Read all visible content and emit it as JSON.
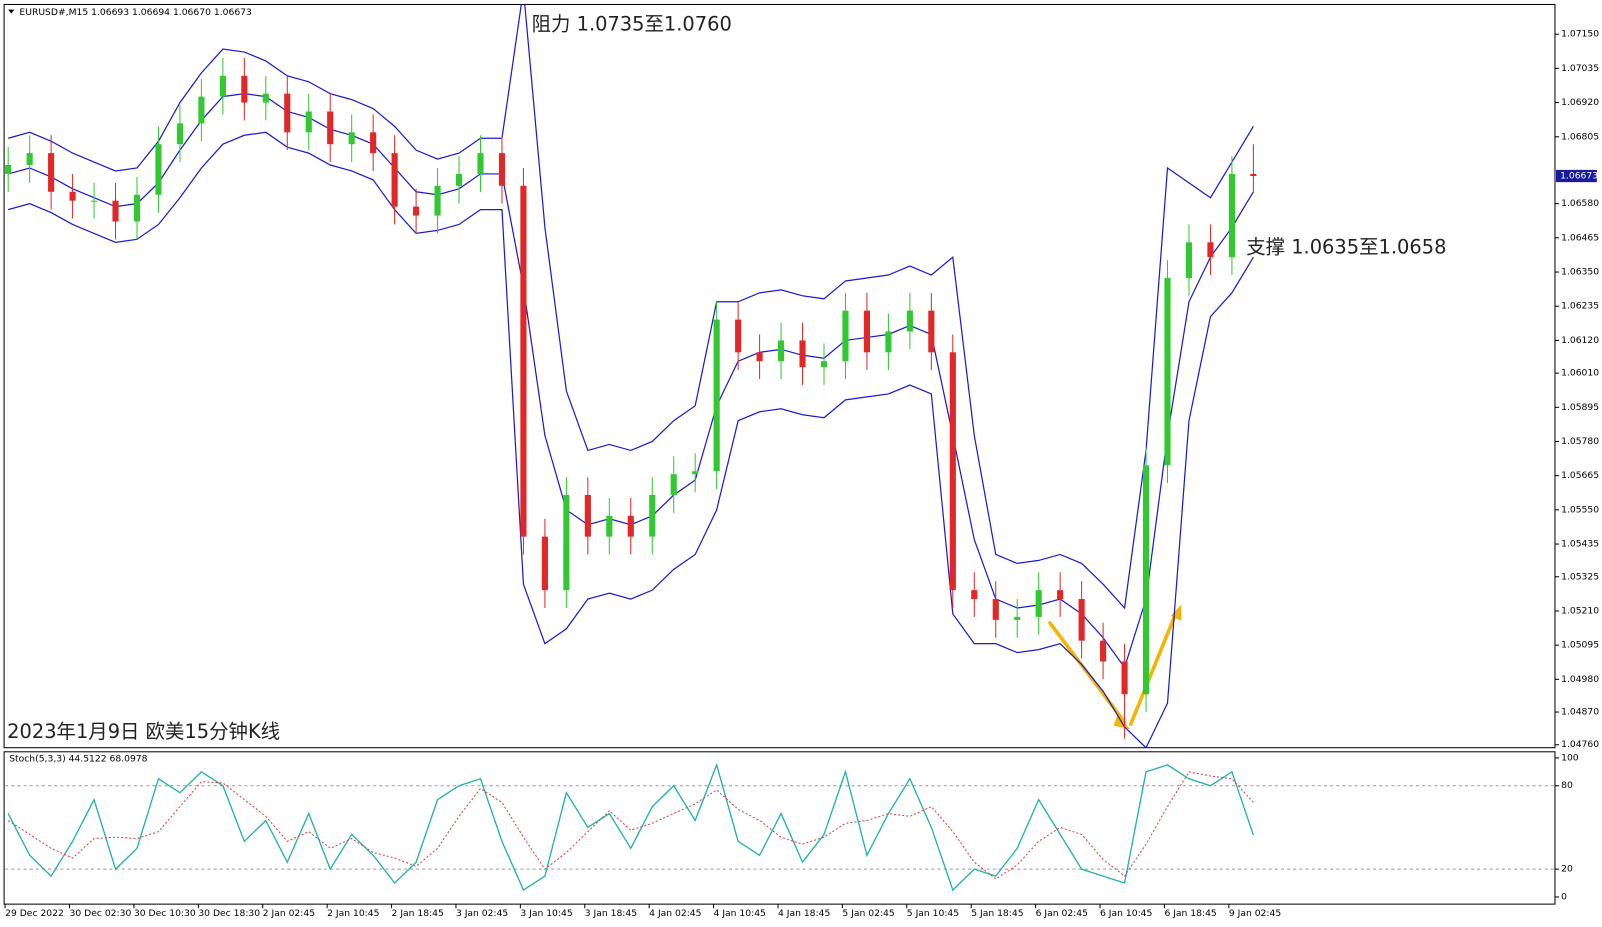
{
  "chart_data": [
    {
      "type": "candlestick",
      "title": "EURUSD#,M15  1.06693 1.06694 1.06670 1.06673",
      "annotations": [
        "阻力 1.0735至1.0760",
        "支撑 1.0635至1.0658",
        "2023年1月9日 欧美15分钟K线"
      ],
      "categories": [
        "29 Dec 2022",
        null,
        null,
        "30 Dec 02:30",
        null,
        null,
        "30 Dec 10:30",
        null,
        null,
        "30 Dec 18:30",
        null,
        null,
        "2 Jan 02:45",
        null,
        null,
        "2 Jan 10:45",
        null,
        null,
        "2 Jan 18:45",
        null,
        null,
        "3 Jan 02:45",
        null,
        null,
        "3 Jan 10:45",
        null,
        null,
        "3 Jan 18:45",
        null,
        null,
        "4 Jan 02:45",
        null,
        null,
        "4 Jan 10:45",
        null,
        null,
        "4 Jan 18:45",
        null,
        null,
        "5 Jan 02:45",
        null,
        null,
        "5 Jan 10:45",
        null,
        null,
        "5 Jan 18:45",
        null,
        null,
        "6 Jan 02:45",
        null,
        null,
        "6 Jan 10:45",
        null,
        null,
        "6 Jan 18:45",
        null,
        null,
        "9 Jan 02:45",
        null
      ],
      "open": [
        1.0668,
        1.0671,
        1.0675,
        1.0662,
        1.0659,
        1.0659,
        1.0652,
        1.0661,
        1.0678,
        1.0685,
        1.0694,
        1.0701,
        1.0692,
        1.0695,
        1.0682,
        1.0689,
        1.0678,
        1.0682,
        1.0675,
        1.0657,
        1.0654,
        1.0664,
        1.0668,
        1.0675,
        1.0664,
        1.0546,
        1.0528,
        1.056,
        1.0546,
        1.0553,
        1.0546,
        1.056,
        1.0567,
        1.0568,
        1.0619,
        1.0608,
        1.0605,
        1.0612,
        1.0603,
        1.0605,
        1.0622,
        1.0608,
        1.0615,
        1.0622,
        1.0608,
        1.0528,
        1.0525,
        1.0518,
        1.0519,
        1.0528,
        1.0525,
        1.0511,
        1.0504,
        1.0493,
        1.057,
        1.0633,
        1.0645,
        1.064,
        1.0668
      ],
      "high": [
        1.0677,
        1.0681,
        1.0681,
        1.0668,
        1.0665,
        1.0665,
        1.0667,
        1.0684,
        1.0691,
        1.07,
        1.0707,
        1.0707,
        1.0701,
        1.0701,
        1.0695,
        1.0695,
        1.0688,
        1.0688,
        1.0681,
        1.0663,
        1.067,
        1.0674,
        1.0681,
        1.0681,
        1.067,
        1.0552,
        1.0566,
        1.0566,
        1.0559,
        1.0559,
        1.0566,
        1.0573,
        1.0574,
        1.0625,
        1.0625,
        1.0614,
        1.0618,
        1.0618,
        1.0611,
        1.0628,
        1.0628,
        1.0621,
        1.0628,
        1.0628,
        1.0614,
        1.0534,
        1.0531,
        1.0525,
        1.0534,
        1.0534,
        1.0531,
        1.0517,
        1.051,
        1.0576,
        1.0639,
        1.0651,
        1.0651,
        1.0674,
        1.0678
      ],
      "low": [
        1.0662,
        1.0665,
        1.0656,
        1.0653,
        1.0653,
        1.0646,
        1.0646,
        1.0655,
        1.0672,
        1.0679,
        1.0688,
        1.0686,
        1.0686,
        1.0676,
        1.0676,
        1.0672,
        1.0672,
        1.0669,
        1.0651,
        1.0648,
        1.0648,
        1.0658,
        1.0662,
        1.0658,
        1.054,
        1.0522,
        1.0522,
        1.054,
        1.054,
        1.054,
        1.054,
        1.0554,
        1.0561,
        1.0562,
        1.0602,
        1.0599,
        1.0599,
        1.0597,
        1.0597,
        1.0599,
        1.0602,
        1.0602,
        1.0609,
        1.0602,
        1.0522,
        1.0519,
        1.0512,
        1.0512,
        1.0513,
        1.0519,
        1.0505,
        1.0498,
        1.0478,
        1.0487,
        1.0564,
        1.0627,
        1.0634,
        1.0634,
        1.0662
      ],
      "close": [
        1.0671,
        1.0675,
        1.0662,
        1.0659,
        1.0659,
        1.0652,
        1.0661,
        1.0678,
        1.0685,
        1.0694,
        1.0701,
        1.0692,
        1.0695,
        1.0682,
        1.0689,
        1.0678,
        1.0682,
        1.0675,
        1.0657,
        1.0654,
        1.0664,
        1.0668,
        1.0675,
        1.0664,
        1.0546,
        1.0528,
        1.056,
        1.0546,
        1.0553,
        1.0546,
        1.056,
        1.0567,
        1.0568,
        1.0619,
        1.0608,
        1.0605,
        1.0612,
        1.0603,
        1.0605,
        1.0622,
        1.0608,
        1.0615,
        1.0622,
        1.0608,
        1.0528,
        1.0525,
        1.0518,
        1.0519,
        1.0528,
        1.0525,
        1.0511,
        1.0504,
        1.0493,
        1.057,
        1.0633,
        1.0645,
        1.064,
        1.0668,
        1.06673
      ],
      "up_color": "#32c832",
      "down_color": "#e02828",
      "bands": {
        "color": "#1a1ad0",
        "upper": [
          1.068,
          1.0682,
          1.0679,
          1.0675,
          1.0672,
          1.0669,
          1.067,
          1.0679,
          1.0692,
          1.0702,
          1.071,
          1.0709,
          1.0706,
          1.0701,
          1.0699,
          1.0695,
          1.0693,
          1.069,
          1.0684,
          1.0676,
          1.0673,
          1.0675,
          1.068,
          1.068,
          1.073,
          1.065,
          1.0595,
          1.0575,
          1.0577,
          1.0575,
          1.0578,
          1.0585,
          1.059,
          1.0625,
          1.0625,
          1.0628,
          1.0629,
          1.0627,
          1.0626,
          1.0632,
          1.0633,
          1.0634,
          1.0637,
          1.0634,
          1.064,
          1.058,
          1.054,
          1.0537,
          1.0538,
          1.054,
          1.0537,
          1.053,
          1.0522,
          1.0575,
          1.067,
          1.0665,
          1.066,
          1.0672,
          1.0684
        ],
        "middle": [
          1.0668,
          1.067,
          1.0667,
          1.0663,
          1.066,
          1.0657,
          1.0658,
          1.0665,
          1.0676,
          1.0686,
          1.0694,
          1.0695,
          1.0694,
          1.0689,
          1.0687,
          1.0683,
          1.0681,
          1.0678,
          1.067,
          1.0662,
          1.0661,
          1.0663,
          1.0668,
          1.0668,
          1.063,
          1.058,
          1.0555,
          1.055,
          1.0552,
          1.055,
          1.0553,
          1.056,
          1.0565,
          1.059,
          1.0605,
          1.0608,
          1.0609,
          1.0607,
          1.0606,
          1.0612,
          1.0613,
          1.0614,
          1.0617,
          1.0614,
          1.058,
          1.0545,
          1.0525,
          1.0522,
          1.0523,
          1.0525,
          1.052,
          1.0512,
          1.0502,
          1.0525,
          1.058,
          1.0625,
          1.064,
          1.065,
          1.0662
        ],
        "lower": [
          1.0656,
          1.0658,
          1.0655,
          1.0651,
          1.0648,
          1.0645,
          1.0646,
          1.0651,
          1.066,
          1.067,
          1.0678,
          1.0681,
          1.0682,
          1.0677,
          1.0675,
          1.0671,
          1.0669,
          1.0666,
          1.0656,
          1.0648,
          1.0649,
          1.0651,
          1.0656,
          1.0656,
          1.053,
          1.051,
          1.0515,
          1.0525,
          1.0527,
          1.0525,
          1.0528,
          1.0535,
          1.054,
          1.0555,
          1.0585,
          1.0588,
          1.0589,
          1.0587,
          1.0586,
          1.0592,
          1.0593,
          1.0594,
          1.0597,
          1.0594,
          1.052,
          1.051,
          1.051,
          1.0507,
          1.0508,
          1.051,
          1.0503,
          1.0494,
          1.0482,
          1.0475,
          1.049,
          1.0585,
          1.062,
          1.0628,
          1.064
        ]
      },
      "last_price": 1.06673,
      "ylim": [
        1.0475,
        1.0725
      ],
      "yticks": [
        {
          "value": 1.0715,
          "label": "1.07150"
        },
        {
          "value": 1.07035,
          "label": "1.07035"
        },
        {
          "value": 1.0692,
          "label": "1.06920"
        },
        {
          "value": 1.06805,
          "label": "1.06805"
        },
        {
          "value": 1.0658,
          "label": "1.06580"
        },
        {
          "value": 1.06465,
          "label": "1.06465"
        },
        {
          "value": 1.0635,
          "label": "1.06350"
        },
        {
          "value": 1.06235,
          "label": "1.06235"
        },
        {
          "value": 1.0612,
          "label": "1.06120"
        },
        {
          "value": 1.0601,
          "label": "1.06010"
        },
        {
          "value": 1.05895,
          "label": "1.05895"
        },
        {
          "value": 1.0578,
          "label": "1.05780"
        },
        {
          "value": 1.05665,
          "label": "1.05665"
        },
        {
          "value": 1.0555,
          "label": "1.05550"
        },
        {
          "value": 1.05435,
          "label": "1.05435"
        },
        {
          "value": 1.05325,
          "label": "1.05325"
        },
        {
          "value": 1.0521,
          "label": "1.05210"
        },
        {
          "value": 1.05095,
          "label": "1.05095"
        },
        {
          "value": 1.0498,
          "label": "1.04980"
        },
        {
          "value": 1.0487,
          "label": "1.04870"
        },
        {
          "value": 1.0476,
          "label": "1.04760"
        }
      ]
    },
    {
      "type": "line",
      "title": "Stoch(5,3,3) 44.5122 68.0978",
      "series": [
        {
          "color": "#20b2aa",
          "dashed": false,
          "values": [
            60,
            30,
            15,
            40,
            70,
            20,
            35,
            85,
            75,
            90,
            80,
            40,
            55,
            25,
            60,
            20,
            45,
            30,
            10,
            25,
            70,
            80,
            85,
            40,
            5,
            15,
            75,
            50,
            60,
            35,
            65,
            80,
            55,
            95,
            40,
            30,
            60,
            25,
            45,
            90,
            30,
            60,
            85,
            50,
            5,
            20,
            15,
            35,
            70,
            45,
            20,
            15,
            10,
            90,
            95,
            85,
            80,
            90,
            44.5122
          ]
        },
        {
          "color": "#e03c3c",
          "dashed": true,
          "values": [
            55,
            45,
            35,
            28,
            42,
            43,
            42,
            47,
            65,
            83,
            82,
            70,
            58,
            40,
            47,
            35,
            42,
            32,
            28,
            22,
            35,
            58,
            78,
            68,
            43,
            20,
            32,
            47,
            62,
            48,
            53,
            60,
            67,
            77,
            63,
            55,
            43,
            38,
            43,
            53,
            55,
            60,
            58,
            65,
            47,
            25,
            13,
            23,
            40,
            50,
            45,
            27,
            15,
            38,
            65,
            90,
            87,
            85,
            68.0978
          ]
        }
      ],
      "ylim": [
        0,
        100
      ],
      "yticks": [
        0,
        20,
        80,
        100
      ]
    }
  ]
}
